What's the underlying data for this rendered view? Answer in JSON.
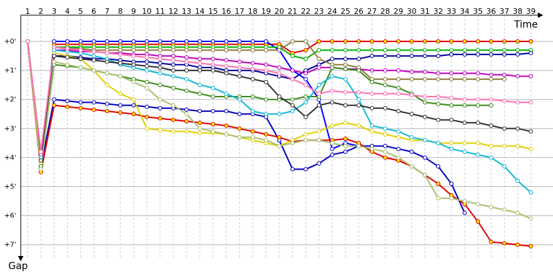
{
  "chart_data": {
    "type": "line",
    "x_label": "Time",
    "y_label": "Gap",
    "categories": [
      "1",
      "2",
      "3",
      "4",
      "5",
      "6",
      "7",
      "8",
      "9",
      "10",
      "11",
      "12",
      "13",
      "14",
      "15",
      "16",
      "17",
      "18",
      "19",
      "20",
      "21",
      "22",
      "23",
      "24",
      "25",
      "26",
      "27",
      "28",
      "29",
      "30",
      "31",
      "32",
      "33",
      "34",
      "35",
      "36",
      "37",
      "38",
      "39"
    ],
    "ylim": [
      -0.95,
      7.6
    ],
    "yticks": [
      {
        "value": 0,
        "label": "+0'"
      },
      {
        "value": 1,
        "label": "+1'"
      },
      {
        "value": 2,
        "label": "+2'"
      },
      {
        "value": 3,
        "label": "+3'"
      },
      {
        "value": 4,
        "label": "+4'"
      },
      {
        "value": 5,
        "label": "+5'"
      },
      {
        "value": 6,
        "label": "+6'"
      },
      {
        "value": 7,
        "label": "+7'"
      }
    ],
    "y_inverted": true,
    "grid": true,
    "series": [
      {
        "color": "#e00000",
        "marker_fill": "#ffff00",
        "values": [
          0,
          4.4,
          0.1,
          0.1,
          0.1,
          0.1,
          0.1,
          0.1,
          0.1,
          0.1,
          0.1,
          0.1,
          0.1,
          0.1,
          0.1,
          0.1,
          0.1,
          0.1,
          0.1,
          0.1,
          0.4,
          0.3,
          0,
          0,
          0,
          0,
          0,
          0,
          0,
          0,
          0,
          0,
          0,
          0,
          0,
          0,
          0,
          0,
          0
        ]
      },
      {
        "color": "#0000ff",
        "values": [
          0,
          4.3,
          0,
          0,
          0,
          0,
          0,
          0,
          0,
          0,
          0,
          0,
          0,
          0,
          0,
          0,
          0,
          0,
          0,
          0.3,
          1.0,
          1.3,
          2.0,
          3.7,
          3.5,
          3.6,
          null,
          null,
          null,
          null,
          null,
          null,
          null,
          null,
          null,
          null,
          null,
          null,
          null
        ]
      },
      {
        "color": "#00b000",
        "values": [
          0,
          4.2,
          0.2,
          0.2,
          0.2,
          0.2,
          0.2,
          0.2,
          0.2,
          0.2,
          0.2,
          0.2,
          0.2,
          0.2,
          0.2,
          0.2,
          0.2,
          0.2,
          0.2,
          0.2,
          0.5,
          0.6,
          0.3,
          0.3,
          0.3,
          0.3,
          0.3,
          0.3,
          0.3,
          0.3,
          0.3,
          0.3,
          0.3,
          0.3,
          0.3,
          0.3,
          0.3,
          0.3,
          0.3
        ]
      },
      {
        "color": "#0000a0",
        "values": [
          0,
          4.3,
          0.5,
          0.5,
          0.55,
          0.6,
          0.6,
          0.65,
          0.7,
          0.7,
          0.75,
          0.8,
          0.8,
          0.9,
          0.9,
          1.0,
          1.0,
          1.0,
          1.1,
          1.2,
          1.3,
          1.0,
          0.8,
          0.6,
          0.6,
          0.6,
          0.5,
          0.5,
          0.5,
          0.5,
          0.5,
          0.5,
          0.45,
          0.45,
          0.45,
          0.45,
          0.45,
          0.45,
          0.4
        ]
      },
      {
        "color": "#c000c0",
        "values": [
          0,
          3.9,
          0.3,
          0.3,
          0.35,
          0.35,
          0.4,
          0.4,
          0.45,
          0.45,
          0.5,
          0.5,
          0.55,
          0.6,
          0.6,
          0.65,
          0.7,
          0.75,
          0.8,
          0.9,
          1.0,
          1.1,
          0.9,
          0.9,
          0.95,
          0.95,
          1.0,
          1.0,
          1.0,
          1.05,
          1.05,
          1.1,
          1.1,
          1.1,
          1.1,
          1.15,
          1.15,
          1.2,
          1.2
        ]
      },
      {
        "color": "#8a7a3a",
        "values": [
          0,
          4.1,
          0.2,
          0.25,
          0.25,
          0.3,
          0.3,
          0.3,
          0.3,
          0.3,
          0.3,
          0.3,
          0.3,
          0.3,
          0.3,
          0.3,
          0.3,
          0.3,
          0.3,
          0.3,
          0,
          0,
          0.6,
          0.8,
          0.8,
          0.9,
          1.3,
          1.3,
          1.3,
          1.3,
          1.3,
          1.3,
          1.3,
          1.3,
          1.3,
          1.3,
          1.3,
          null,
          null
        ]
      },
      {
        "color": "#0000c0",
        "values": [
          0,
          4.3,
          2.0,
          2.05,
          2.1,
          2.1,
          2.15,
          2.2,
          2.2,
          2.25,
          2.3,
          2.3,
          2.35,
          2.4,
          2.4,
          2.4,
          2.5,
          2.5,
          2.6,
          3.4,
          4.4,
          4.4,
          4.2,
          3.9,
          3.8,
          3.6,
          3.6,
          3.6,
          3.7,
          3.8,
          4.0,
          4.3,
          4.9,
          5.9,
          null,
          null,
          null,
          null,
          null
        ]
      },
      {
        "color": "#e00000",
        "marker_fill": "#ffff00",
        "values": [
          0,
          4.5,
          2.2,
          2.25,
          2.3,
          2.35,
          2.4,
          2.45,
          2.5,
          2.6,
          2.65,
          2.7,
          2.75,
          2.8,
          2.85,
          2.9,
          3.0,
          3.1,
          3.2,
          3.3,
          3.45,
          3.4,
          3.4,
          3.4,
          3.35,
          3.5,
          3.8,
          4.0,
          4.1,
          4.3,
          4.6,
          4.9,
          5.3,
          5.6,
          6.2,
          6.9,
          6.95,
          7.0,
          7.05
        ]
      },
      {
        "color": "#e0d000",
        "values": [
          0,
          4.2,
          0.4,
          0.5,
          0.6,
          1.0,
          1.5,
          1.8,
          2.0,
          3.0,
          3.05,
          3.1,
          3.1,
          3.15,
          3.15,
          3.2,
          3.3,
          3.4,
          3.5,
          3.6,
          3.4,
          3.2,
          3.1,
          2.9,
          2.8,
          2.9,
          3.1,
          3.2,
          3.3,
          3.4,
          3.4,
          3.5,
          3.5,
          3.5,
          3.5,
          3.6,
          3.6,
          3.6,
          3.7
        ]
      },
      {
        "color": "#3a8a1a",
        "values": [
          0,
          4.3,
          0.8,
          0.85,
          0.9,
          1.0,
          1.1,
          1.2,
          1.3,
          1.4,
          1.5,
          1.6,
          1.7,
          1.8,
          1.9,
          1.9,
          1.9,
          1.9,
          2.0,
          2.0,
          2.0,
          1.9,
          1.9,
          0.9,
          0.95,
          1.0,
          1.4,
          1.5,
          1.6,
          1.8,
          2.1,
          2.15,
          2.2,
          2.2,
          2.2,
          2.2,
          null,
          null,
          null
        ]
      },
      {
        "color": "#10b8d8",
        "values": [
          0,
          4.0,
          0.3,
          0.35,
          0.4,
          0.5,
          0.6,
          0.8,
          0.9,
          1.0,
          1.1,
          1.2,
          1.3,
          1.5,
          1.6,
          1.8,
          2.0,
          2.4,
          2.5,
          2.5,
          2.4,
          2.1,
          1.5,
          1.2,
          1.3,
          2.0,
          2.9,
          3.0,
          3.1,
          3.3,
          3.4,
          3.5,
          3.7,
          3.8,
          3.9,
          4.0,
          4.3,
          4.8,
          5.2
        ]
      },
      {
        "color": "#303030",
        "values": [
          0,
          4.1,
          0.5,
          0.55,
          0.6,
          0.65,
          0.7,
          0.75,
          0.8,
          0.85,
          0.9,
          1.0,
          1.0,
          1.0,
          1.0,
          1.1,
          1.2,
          1.3,
          1.4,
          1.9,
          2.2,
          2.6,
          2.2,
          2.1,
          2.2,
          2.2,
          2.3,
          2.3,
          2.4,
          2.5,
          2.6,
          2.7,
          2.7,
          2.8,
          2.8,
          2.9,
          3.0,
          3.0,
          3.1
        ]
      },
      {
        "color": "#a8c070",
        "values": [
          0,
          4.4,
          0.7,
          0.8,
          0.9,
          1.0,
          1.1,
          1.2,
          1.4,
          1.6,
          2.0,
          2.2,
          2.5,
          3.0,
          3.1,
          3.2,
          3.3,
          3.3,
          3.4,
          3.6,
          3.5,
          3.4,
          3.4,
          3.5,
          3.6,
          3.6,
          3.7,
          3.8,
          4.0,
          4.3,
          4.6,
          5.4,
          5.4,
          5.5,
          5.6,
          5.7,
          5.8,
          5.9,
          6.1
        ]
      },
      {
        "color": "#ff70b0",
        "values": [
          0,
          3.8,
          0.2,
          0.25,
          0.3,
          0.35,
          0.4,
          0.45,
          0.5,
          0.55,
          0.6,
          0.65,
          0.7,
          0.75,
          0.8,
          0.85,
          0.9,
          0.95,
          1.0,
          1.1,
          1.3,
          1.5,
          1.8,
          1.7,
          1.75,
          1.75,
          1.8,
          1.8,
          1.8,
          1.85,
          1.9,
          1.9,
          1.95,
          2.0,
          2.0,
          2.0,
          2.05,
          2.1,
          2.1
        ]
      }
    ]
  }
}
